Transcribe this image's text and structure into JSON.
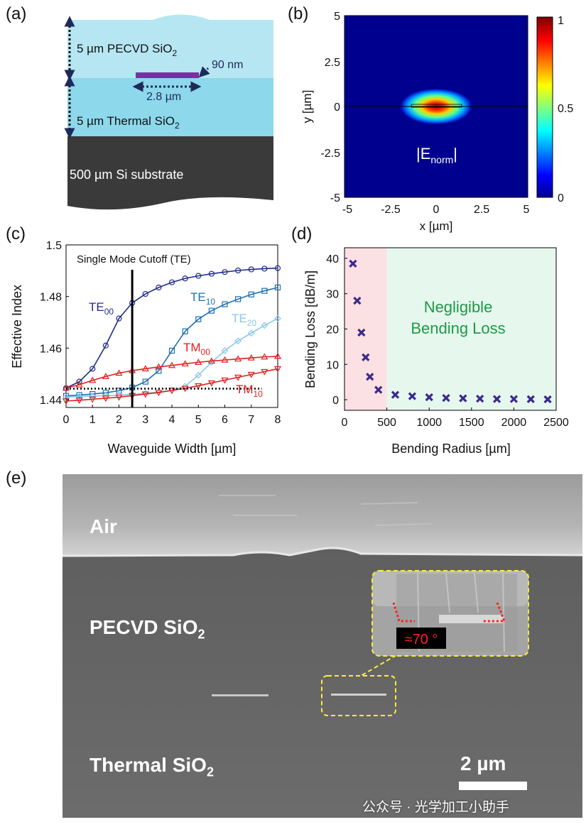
{
  "panel_a": {
    "label": "(a)",
    "pecvd_layer": "5 µm PECVD SiO",
    "thermal_layer": "5 µm Thermal SiO",
    "subscript2": "2",
    "substrate": "500 µm Si substrate",
    "thickness": "90 nm",
    "width": "2.8 µm",
    "colors": {
      "pecvd": "#b6e6f2",
      "thermal": "#8dd8ea",
      "substrate": "#3a3a3a",
      "core": "#7a2fa0",
      "arrow": "#1e2a5a"
    }
  },
  "panel_b": {
    "label": "(b)",
    "field_label": "|E",
    "field_sub": "norm",
    "field_close": "|",
    "xlabel": "x [µm]",
    "ylabel": "y [µm]",
    "xticks": [
      "-5",
      "-2.5",
      "0",
      "2.5",
      "5"
    ],
    "yticks": [
      "5",
      "2.5",
      "0",
      "-2.5",
      "-5"
    ],
    "colorbar_ticks": [
      "1",
      "0.5",
      "0"
    ],
    "colormap": "jet",
    "xlim": [
      -5,
      5
    ],
    "ylim": [
      -5,
      5
    ]
  },
  "panel_c": {
    "label": "(c)",
    "xlabel": "Waveguide Width [µm]",
    "ylabel": "Effective Index",
    "annotation": "Single Mode Cutoff (TE)",
    "cutoff_x": 2.5,
    "xlim": [
      0,
      8
    ],
    "ylim": [
      1.437,
      1.5
    ],
    "xticks": [
      "0",
      "1",
      "2",
      "3",
      "4",
      "5",
      "6",
      "7",
      "8"
    ],
    "yticks": [
      "1.5",
      "1.48",
      "1.46",
      "1.44"
    ],
    "series_labels": [
      {
        "main": "TE",
        "sub": "00",
        "color": "#1f2d8a"
      },
      {
        "main": "TE",
        "sub": "10",
        "color": "#1f6fb2"
      },
      {
        "main": "TE",
        "sub": "20",
        "color": "#88c8e8"
      },
      {
        "main": "TM",
        "sub": "00",
        "color": "#e02020"
      },
      {
        "main": "TM",
        "sub": "10",
        "color": "#e02020"
      }
    ]
  },
  "panel_d": {
    "label": "(d)",
    "xlabel": "Bending Radius [µm]",
    "ylabel": "Bending Loss [dB/m]",
    "annotation_line1": "Negligible",
    "annotation_line2": "Bending Loss",
    "xlim": [
      0,
      2500
    ],
    "ylim": [
      -3,
      43
    ],
    "xticks": [
      "0",
      "500",
      "1000",
      "1500",
      "2000",
      "2500"
    ],
    "yticks": [
      "40",
      "30",
      "20",
      "10",
      "0"
    ],
    "region_split": 500,
    "colors": {
      "left_region": "#fbe0e4",
      "right_region": "#e6f7ee",
      "marker": "#3b2a8c",
      "annotation": "#1e9a45"
    }
  },
  "panel_e": {
    "label": "(e)",
    "air": "Air",
    "pecvd": "PECVD SiO",
    "thermal": "Thermal SiO",
    "subscript2": "2",
    "scale_bar": "2 µm",
    "angle": "≈70 °",
    "watermark": "公众号 · 光学加工小助手"
  },
  "chart_data": [
    {
      "type": "line",
      "title": "",
      "xlabel": "Waveguide Width [µm]",
      "ylabel": "Effective Index",
      "xlim": [
        0,
        8
      ],
      "ylim": [
        1.437,
        1.5
      ],
      "x": [
        0,
        0.5,
        1,
        1.5,
        2,
        2.5,
        3,
        3.5,
        4,
        4.5,
        5,
        5.5,
        6,
        6.5,
        7,
        7.5,
        8
      ],
      "series": [
        {
          "name": "TE00",
          "values": [
            1.4445,
            1.447,
            1.452,
            1.461,
            1.4715,
            1.4775,
            1.481,
            1.4835,
            1.4855,
            1.487,
            1.488,
            1.4888,
            1.4895,
            1.4901,
            1.4905,
            1.4908,
            1.491
          ]
        },
        {
          "name": "TE10",
          "values": [
            1.4415,
            1.4418,
            1.4422,
            1.4427,
            1.4435,
            1.4447,
            1.447,
            1.4512,
            1.459,
            1.4665,
            1.4712,
            1.4745,
            1.477,
            1.479,
            1.4808,
            1.4822,
            1.4835
          ]
        },
        {
          "name": "TE20",
          "values": [
            1.441,
            1.4412,
            1.4414,
            1.4416,
            1.4418,
            1.4421,
            1.4425,
            1.443,
            1.4437,
            1.4452,
            1.4495,
            1.4545,
            1.459,
            1.4628,
            1.4658,
            1.4688,
            1.4715
          ]
        },
        {
          "name": "TM00",
          "values": [
            1.4445,
            1.4458,
            1.4475,
            1.449,
            1.4503,
            1.4513,
            1.452,
            1.4527,
            1.4533,
            1.4539,
            1.4545,
            1.455,
            1.4554,
            1.4558,
            1.4562,
            1.4566,
            1.4568
          ]
        },
        {
          "name": "TM10",
          "values": [
            1.4395,
            1.4398,
            1.4402,
            1.4406,
            1.441,
            1.4416,
            1.4422,
            1.4428,
            1.4436,
            1.4444,
            1.4454,
            1.4465,
            1.4476,
            1.4487,
            1.4498,
            1.4509,
            1.452
          ]
        }
      ],
      "hline_y": 1.4443
    },
    {
      "type": "scatter",
      "title": "",
      "xlabel": "Bending Radius [µm]",
      "ylabel": "Bending Loss [dB/m]",
      "xlim": [
        0,
        2500
      ],
      "ylim": [
        -3,
        43
      ],
      "x": [
        100,
        150,
        200,
        250,
        300,
        400,
        600,
        800,
        1000,
        1200,
        1400,
        1600,
        1800,
        2000,
        2200,
        2400
      ],
      "y": [
        38.5,
        28,
        19,
        12,
        6.5,
        2.8,
        1.4,
        1.0,
        0.7,
        0.5,
        0.4,
        0.3,
        0.2,
        0.2,
        0.15,
        0.1
      ]
    }
  ]
}
